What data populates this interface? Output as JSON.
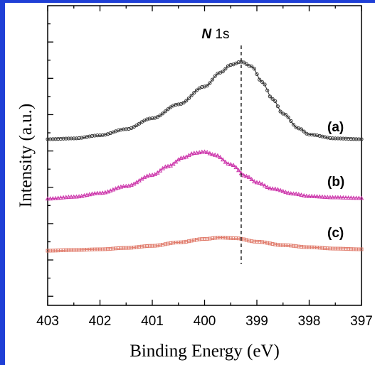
{
  "chart_data": {
    "type": "line",
    "title": "",
    "xlabel": "Binding Energy (eV)",
    "ylabel": "Intensity (a.u.)",
    "xlim": [
      403,
      397
    ],
    "x_reversed": true,
    "x_ticks": [
      "403",
      "402",
      "401",
      "400",
      "399",
      "398",
      "397"
    ],
    "y_tick_labels": false,
    "grid": false,
    "annotation": {
      "text_italic": "N",
      "text": " 1s",
      "x": 399.3
    },
    "series": [
      {
        "name": "(a)",
        "color": "#333333",
        "marker": "circle",
        "x": [
          403.0,
          402.5,
          402.0,
          401.5,
          401.0,
          400.5,
          400.0,
          399.7,
          399.5,
          399.3,
          399.1,
          398.9,
          398.7,
          398.5,
          398.2,
          398.0,
          397.5,
          397.0
        ],
        "y": [
          0.0,
          0.01,
          0.05,
          0.13,
          0.27,
          0.45,
          0.68,
          0.86,
          0.96,
          1.0,
          0.94,
          0.74,
          0.52,
          0.33,
          0.14,
          0.06,
          0.01,
          0.0
        ]
      },
      {
        "name": "(b)",
        "color": "#cc33aa",
        "marker": "triangle",
        "x": [
          403.0,
          402.5,
          402.0,
          401.5,
          401.0,
          400.7,
          400.4,
          400.2,
          400.0,
          399.8,
          399.5,
          399.2,
          399.0,
          398.7,
          398.3,
          398.0,
          397.5,
          397.0
        ],
        "y": [
          0.0,
          0.03,
          0.09,
          0.2,
          0.38,
          0.52,
          0.66,
          0.73,
          0.75,
          0.7,
          0.55,
          0.36,
          0.26,
          0.16,
          0.08,
          0.04,
          0.02,
          0.01
        ]
      },
      {
        "name": "(c)",
        "color": "#e07a6a",
        "marker": "square",
        "x": [
          403.0,
          402.5,
          402.0,
          401.5,
          401.0,
          400.5,
          400.0,
          399.7,
          399.4,
          399.0,
          398.5,
          398.0,
          397.5,
          397.0
        ],
        "y": [
          0.0,
          0.01,
          0.02,
          0.04,
          0.07,
          0.12,
          0.17,
          0.19,
          0.18,
          0.13,
          0.08,
          0.05,
          0.03,
          0.02
        ]
      }
    ]
  }
}
